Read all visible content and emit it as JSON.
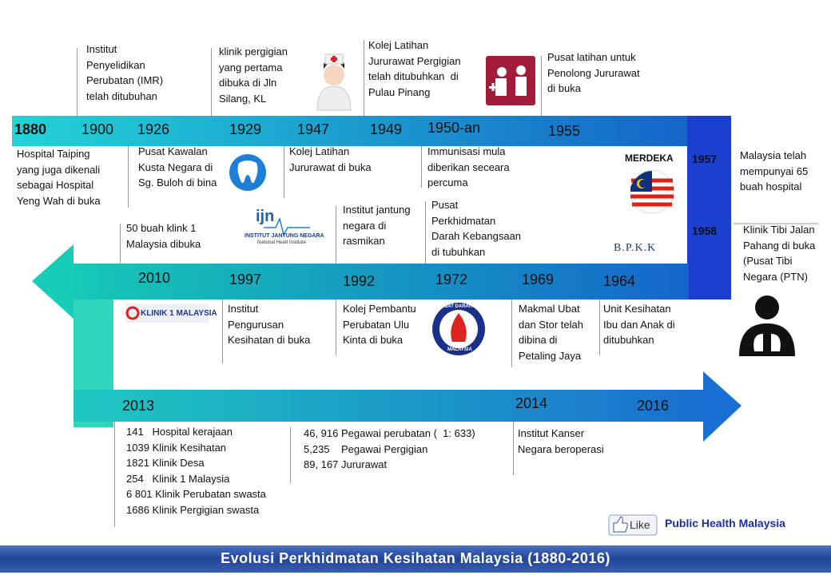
{
  "title": "Evolusi Perkhidmatan Kesihatan Malaysia (1880-2016)",
  "events": [
    {
      "year": "1880",
      "notes": [
        [
          "Hospital Taiping",
          "yang juga dikenali",
          "sebagai Hospital",
          "Yeng Wah di buka"
        ]
      ]
    },
    {
      "year": "1900",
      "notes": [
        [
          "Institut",
          "Penyelidikan",
          "Perubatan (IMR)",
          "telah ditubuhan"
        ]
      ]
    },
    {
      "year": "1926",
      "notes": [
        [
          "Pusat Kawalan",
          "Kusta Negara di",
          "Sg. Buloh di bina"
        ]
      ]
    },
    {
      "year": "1929",
      "notes": [
        [
          "klinik pergigian",
          "yang pertama",
          "dibuka di Jln",
          "Silang, KL"
        ]
      ]
    },
    {
      "year": "1947",
      "notes": [
        [
          "Kolej Latihan",
          "Jururawat di buka"
        ]
      ]
    },
    {
      "year": "1949",
      "notes": [
        [
          "Kolej Latihan",
          "Jururawat Pergigian",
          "telah ditubuhkan  di",
          "Pulau Pinang"
        ]
      ]
    },
    {
      "year": "1950-an",
      "notes": [
        [
          "Immunisasi mula",
          "diberikan seceara",
          "percuma"
        ]
      ]
    },
    {
      "year": "1955",
      "notes": [
        [
          "Pusat latihan untuk",
          "Penolong Jururawat",
          "di buka"
        ]
      ]
    },
    {
      "year": "1957",
      "notes": [
        [
          "Malaysia telah",
          "mempunyai 65",
          "buah hospital"
        ]
      ]
    },
    {
      "year": "1958",
      "notes": [
        [
          "Klinik Tibi Jalan",
          "Pahang di buka",
          "(Pusat Tibi",
          "Negara (PTN)"
        ]
      ]
    },
    {
      "year": "2010",
      "notes": [
        [
          "50 buah klink 1",
          "Malaysia dibuka"
        ]
      ]
    },
    {
      "year": "1997",
      "notes": [
        [
          "Institut",
          "Pengurusan",
          "Kesihatan di buka"
        ]
      ]
    },
    {
      "year": "1992",
      "notes": [
        [
          "Institut jantung",
          "negara di",
          "rasmikan"
        ],
        [
          "Kolej Pembantu",
          "Perubatan Ulu",
          "Kinta di buka"
        ]
      ]
    },
    {
      "year": "1972",
      "notes": [
        [
          "Pusat",
          "Perkhidmatan",
          "Darah Kebangsaan",
          "di tubuhkan"
        ]
      ]
    },
    {
      "year": "1969",
      "notes": [
        [
          "Makmal Ubat",
          "dan Stor telah",
          "dibina di",
          "Petaling Jaya"
        ]
      ]
    },
    {
      "year": "1964",
      "notes": [
        [
          "Unit Kesihatan",
          "Ibu dan Anak di",
          "ditubuhkan"
        ]
      ]
    },
    {
      "year": "2013",
      "notes": [
        [
          "141   Hospital kerajaan",
          "1039 Klinik Kesihatan",
          "1821 Klinik Desa",
          "254   Klinik 1 Malaysia",
          "6 801 Klinik Perubatan swasta",
          "1686 Klinik Pergigian swasta"
        ],
        [
          "46, 916 Pegawai perubatan (  1: 633)",
          "5,235    Pegawai Pergigian",
          "89, 167 Jururawat"
        ]
      ]
    },
    {
      "year": "2014",
      "notes": [
        [
          "Institut Kanser",
          "Negara beroperasi"
        ]
      ]
    },
    {
      "year": "2016",
      "notes": []
    }
  ],
  "logos": {
    "merdeka": "MERDEKA",
    "bpkk": "B.P.K.K",
    "ijn": [
      "ijn",
      "INSTITUT JANTUNG NEGARA",
      "National Heart Institute"
    ],
    "klinik1": "KLINIK 1 MALAYSIA",
    "darah": [
      "PUSAT DARAH NEGARA",
      "MALAYSIA"
    ]
  },
  "footer": {
    "like": "Like",
    "page": "Public Health Malaysia"
  }
}
